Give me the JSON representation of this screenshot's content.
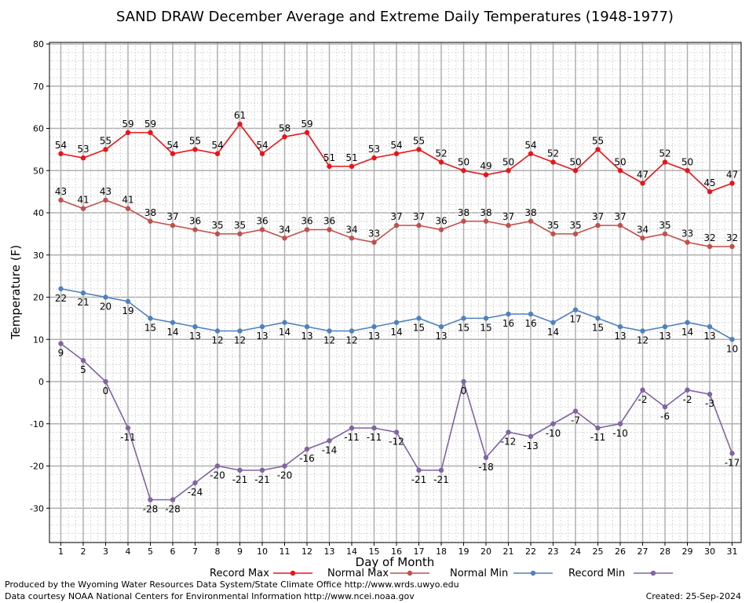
{
  "chart_data": {
    "type": "line",
    "title": "SAND DRAW December Average and Extreme Daily Temperatures (1948-1977)",
    "xlabel": "Day of Month",
    "ylabel": "Temperature (F)",
    "x": [
      1,
      2,
      3,
      4,
      5,
      6,
      7,
      8,
      9,
      10,
      11,
      12,
      13,
      14,
      15,
      16,
      17,
      18,
      19,
      20,
      21,
      22,
      23,
      24,
      25,
      26,
      27,
      28,
      29,
      30,
      31
    ],
    "ylim": [
      -38,
      80
    ],
    "yticks": [
      -30,
      -20,
      -10,
      0,
      10,
      20,
      30,
      40,
      50,
      60,
      70,
      80
    ],
    "grid": true,
    "legend_position": "bottom",
    "series": [
      {
        "name": "Record Max",
        "color": "#e8141a",
        "values": [
          54,
          53,
          55,
          59,
          59,
          54,
          55,
          54,
          61,
          54,
          58,
          59,
          51,
          51,
          53,
          54,
          55,
          52,
          50,
          49,
          50,
          54,
          52,
          50,
          55,
          50,
          47,
          52,
          50,
          45,
          47
        ]
      },
      {
        "name": "Normal Max",
        "color": "#c0504d",
        "values": [
          43,
          41,
          43,
          41,
          38,
          37,
          36,
          35,
          35,
          36,
          34,
          36,
          36,
          34,
          33,
          37,
          37,
          36,
          38,
          38,
          37,
          38,
          35,
          35,
          37,
          37,
          34,
          35,
          33,
          32,
          32
        ]
      },
      {
        "name": "Normal Min",
        "color": "#4f81bd",
        "values": [
          22,
          21,
          20,
          19,
          15,
          14,
          13,
          12,
          12,
          13,
          14,
          13,
          12,
          12,
          13,
          14,
          15,
          13,
          15,
          15,
          16,
          16,
          14,
          17,
          15,
          13,
          12,
          13,
          14,
          13,
          10
        ]
      },
      {
        "name": "Record Min",
        "color": "#8064a2",
        "values": [
          9,
          5,
          0,
          -11,
          -28,
          -28,
          -24,
          -20,
          -21,
          -21,
          -20,
          -16,
          -14,
          -11,
          -11,
          -12,
          -21,
          -21,
          0,
          -18,
          -12,
          -13,
          -10,
          -7,
          -11,
          -10,
          -2,
          -6,
          -2,
          -3,
          -17
        ]
      }
    ]
  },
  "footer": {
    "produced_by": "Produced by the Wyoming Water Resources Data System/State Climate Office http://www.wrds.uwyo.edu",
    "courtesy": "Data courtesy NOAA National Centers for Environmental Information http://www.ncei.noaa.gov",
    "created": "Created:  25-Sep-2024"
  }
}
